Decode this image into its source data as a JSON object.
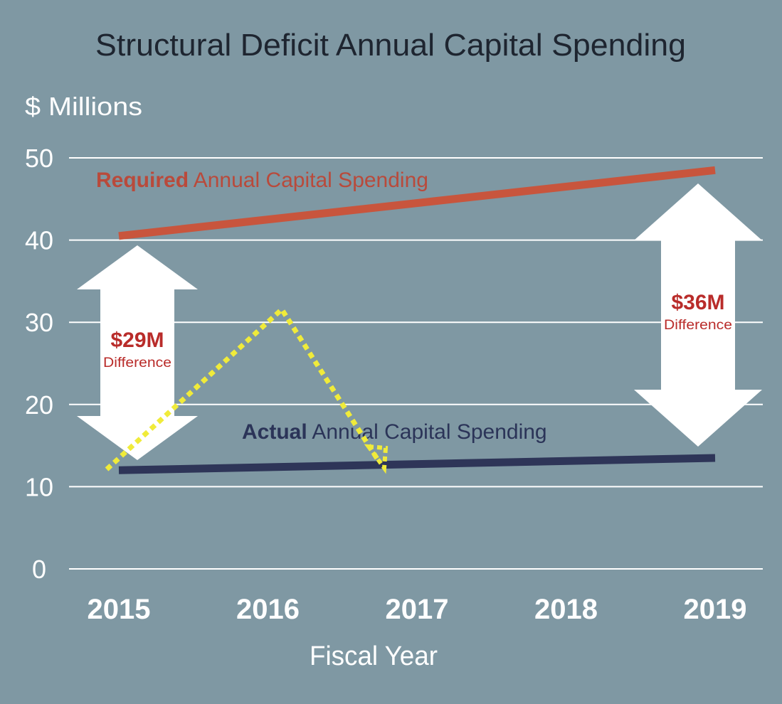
{
  "chart_data": {
    "type": "line",
    "title": "Structural Deficit Annual Capital Spending",
    "ylabel": "$ Millions",
    "xlabel": "Fiscal Year",
    "categories": [
      "2015",
      "2016",
      "2017",
      "2018",
      "2019"
    ],
    "yticks": [
      "0",
      "10",
      "20",
      "30",
      "40",
      "50"
    ],
    "ylim": [
      0,
      50
    ],
    "grid": true,
    "series": [
      {
        "name": "Required Annual Capital Spending",
        "label_bold": "Required",
        "label_rest": "Annual Capital Spending",
        "color": "#c8553d",
        "label_color": "#b94a3b",
        "x": [
          2015,
          2019
        ],
        "values": [
          40.5,
          48.5
        ]
      },
      {
        "name": "Actual Annual Capital Spending",
        "label_bold": "Actual",
        "label_rest": "Annual Capital Spending",
        "color": "#2e3558",
        "label_color": "#2b3458",
        "x": [
          2015,
          2019
        ],
        "values": [
          12.0,
          13.5
        ]
      }
    ],
    "annotations": [
      {
        "amount": "$29M",
        "text": "Difference",
        "x": 2015,
        "from": 12.0,
        "to": 40.5
      },
      {
        "amount": "$36M",
        "text": "Difference",
        "x": 2019,
        "from": 13.5,
        "to": 48.5
      }
    ],
    "trend_arrow": {
      "color": "#f0eb3a",
      "points": [
        [
          2015,
          12.0
        ],
        [
          2016,
          32.0
        ],
        [
          2017,
          12.5
        ]
      ]
    },
    "colors": {
      "background": "#7f98a3",
      "gridline": "#ffffff",
      "text": "#ffffff",
      "title": "#1e2530",
      "difference_text": "#b92c2a"
    }
  }
}
